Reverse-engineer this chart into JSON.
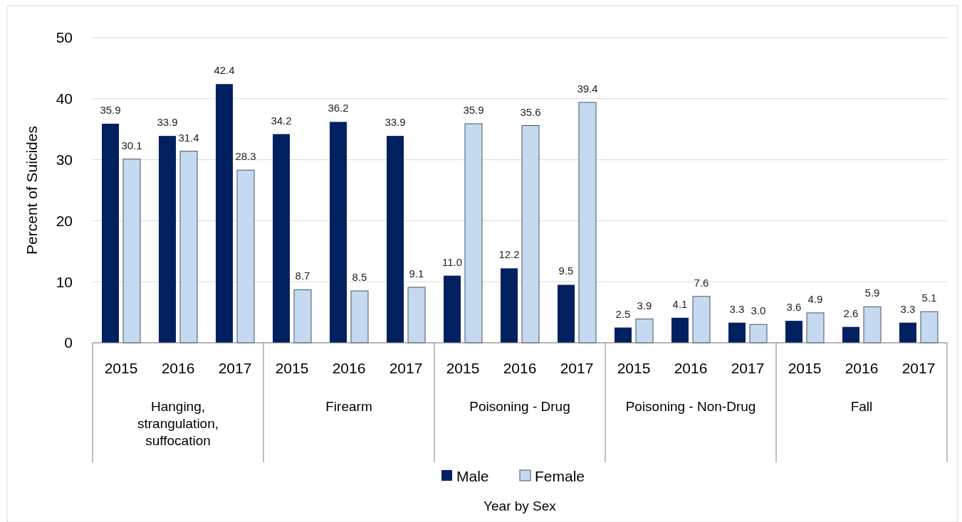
{
  "chart_data": {
    "type": "bar",
    "ylabel": "Percent of Suicides",
    "categories": [
      "2015",
      "2016",
      "2017",
      "2015",
      "2016",
      "2017",
      "2015",
      "2016",
      "2017",
      "2015",
      "2016",
      "2017",
      "2015",
      "2016",
      "2017"
    ],
    "annotations": [
      "Hanging, strangulation, suffocation",
      "Firearm",
      "Poisoning - Drug",
      "Poisoning - Non-Drug",
      "Fall",
      "Year by Sex"
    ],
    "series": [
      {
        "name": "Male",
        "color": "#002060",
        "values": [
          35.9,
          33.9,
          42.4,
          34.2,
          36.2,
          33.9,
          11.0,
          12.2,
          9.5,
          2.5,
          4.1,
          3.3,
          3.6,
          2.6,
          3.3
        ],
        "value_labels": [
          "35.9",
          "33.9",
          "42.4",
          "34.2",
          "36.2",
          "33.9",
          "11.0",
          "12.2",
          "9.5",
          "2.5",
          "4.1",
          "3.3",
          "3.6",
          "2.6",
          "3.3"
        ]
      },
      {
        "name": "Female",
        "color": "#c5d9f1",
        "values": [
          30.1,
          31.4,
          28.3,
          8.7,
          8.5,
          9.1,
          35.9,
          35.6,
          39.4,
          3.9,
          7.6,
          3.0,
          4.9,
          5.9,
          5.1
        ],
        "value_labels": [
          "30.1",
          "31.4",
          "28.3",
          "8.7",
          "8.5",
          "9.1",
          "35.9",
          "35.6",
          "39.4",
          "3.9",
          "7.6",
          "3.0",
          "4.9",
          "5.9",
          "5.1"
        ]
      }
    ],
    "ylim": [
      0,
      50
    ],
    "yticks": [
      0,
      10,
      20,
      30,
      40,
      50
    ],
    "grid": "y",
    "legend": "bottom"
  }
}
